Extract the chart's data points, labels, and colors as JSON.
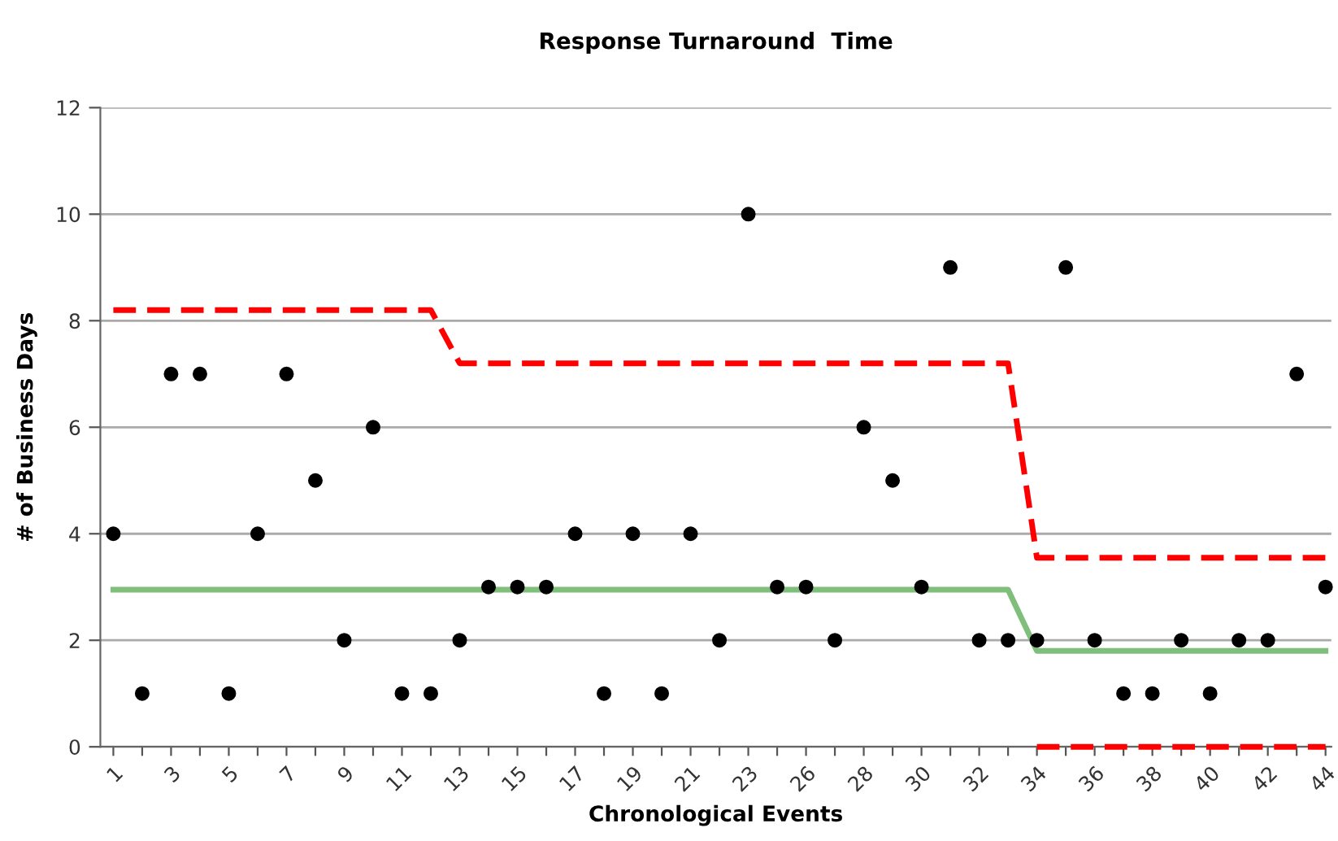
{
  "chart_data": {
    "type": "scatter",
    "title": "Response Turnaround  Time",
    "xlabel": "Chronological Events",
    "ylabel": "# of Business Days",
    "categories": [
      "1",
      null,
      "3",
      null,
      "5",
      null,
      "7",
      null,
      "9",
      null,
      "11",
      null,
      "13",
      null,
      "15",
      null,
      "17",
      null,
      "19",
      null,
      "21",
      null,
      "23",
      null,
      "26",
      null,
      "28",
      null,
      "30",
      null,
      "32",
      null,
      "34",
      null,
      "36",
      null,
      "38",
      null,
      "40",
      null,
      "42",
      null,
      "44"
    ],
    "ylim": [
      0,
      12
    ],
    "yticks": [
      0,
      2,
      4,
      6,
      8,
      10,
      12
    ],
    "grid": "y",
    "legend": false,
    "series": [
      {
        "color": "#000000",
        "marker": "circle",
        "values": [
          4,
          1,
          7,
          7,
          1,
          4,
          7,
          5,
          2,
          6,
          1,
          1,
          2,
          3,
          3,
          3,
          4,
          1,
          4,
          1,
          4,
          2,
          10,
          3,
          3,
          2,
          6,
          5,
          3,
          9,
          2,
          2,
          2,
          9,
          2,
          1,
          1,
          2,
          1,
          2,
          2,
          7,
          3
        ]
      },
      {
        "type": "line",
        "color": "#7fbf7b",
        "line_style": "solid",
        "marker": "none",
        "values": [
          2.95,
          2.95,
          2.95,
          2.95,
          2.95,
          2.95,
          2.95,
          2.95,
          2.95,
          2.95,
          2.95,
          2.95,
          2.95,
          2.95,
          2.95,
          2.95,
          2.95,
          2.95,
          2.95,
          2.95,
          2.95,
          2.95,
          2.95,
          2.95,
          2.95,
          2.95,
          2.95,
          2.95,
          2.95,
          2.95,
          2.95,
          2.95,
          1.8,
          1.8,
          1.8,
          1.8,
          1.8,
          1.8,
          1.8,
          1.8,
          1.8,
          1.8,
          1.8
        ]
      },
      {
        "type": "line",
        "color": "#ff0000",
        "line_style": "dashed",
        "marker": "none",
        "values": [
          8.2,
          8.2,
          8.2,
          8.2,
          8.2,
          8.2,
          8.2,
          8.2,
          8.2,
          8.2,
          8.2,
          8.2,
          7.2,
          7.2,
          7.2,
          7.2,
          7.2,
          7.2,
          7.2,
          7.2,
          7.2,
          7.2,
          7.2,
          7.2,
          7.2,
          7.2,
          7.2,
          7.2,
          7.2,
          7.2,
          7.2,
          7.2,
          3.55,
          3.55,
          3.55,
          3.55,
          3.55,
          3.55,
          3.55,
          3.55,
          3.55,
          3.55,
          3.55
        ]
      },
      {
        "type": "line",
        "color": "#ff0000",
        "line_style": "dashed",
        "marker": "none",
        "values": [
          null,
          null,
          null,
          null,
          null,
          null,
          null,
          null,
          null,
          null,
          null,
          null,
          null,
          null,
          null,
          null,
          null,
          null,
          null,
          null,
          null,
          null,
          null,
          null,
          null,
          null,
          null,
          null,
          null,
          null,
          null,
          null,
          0,
          0,
          0,
          0,
          0,
          0,
          0,
          0,
          0,
          0,
          0
        ]
      }
    ]
  }
}
